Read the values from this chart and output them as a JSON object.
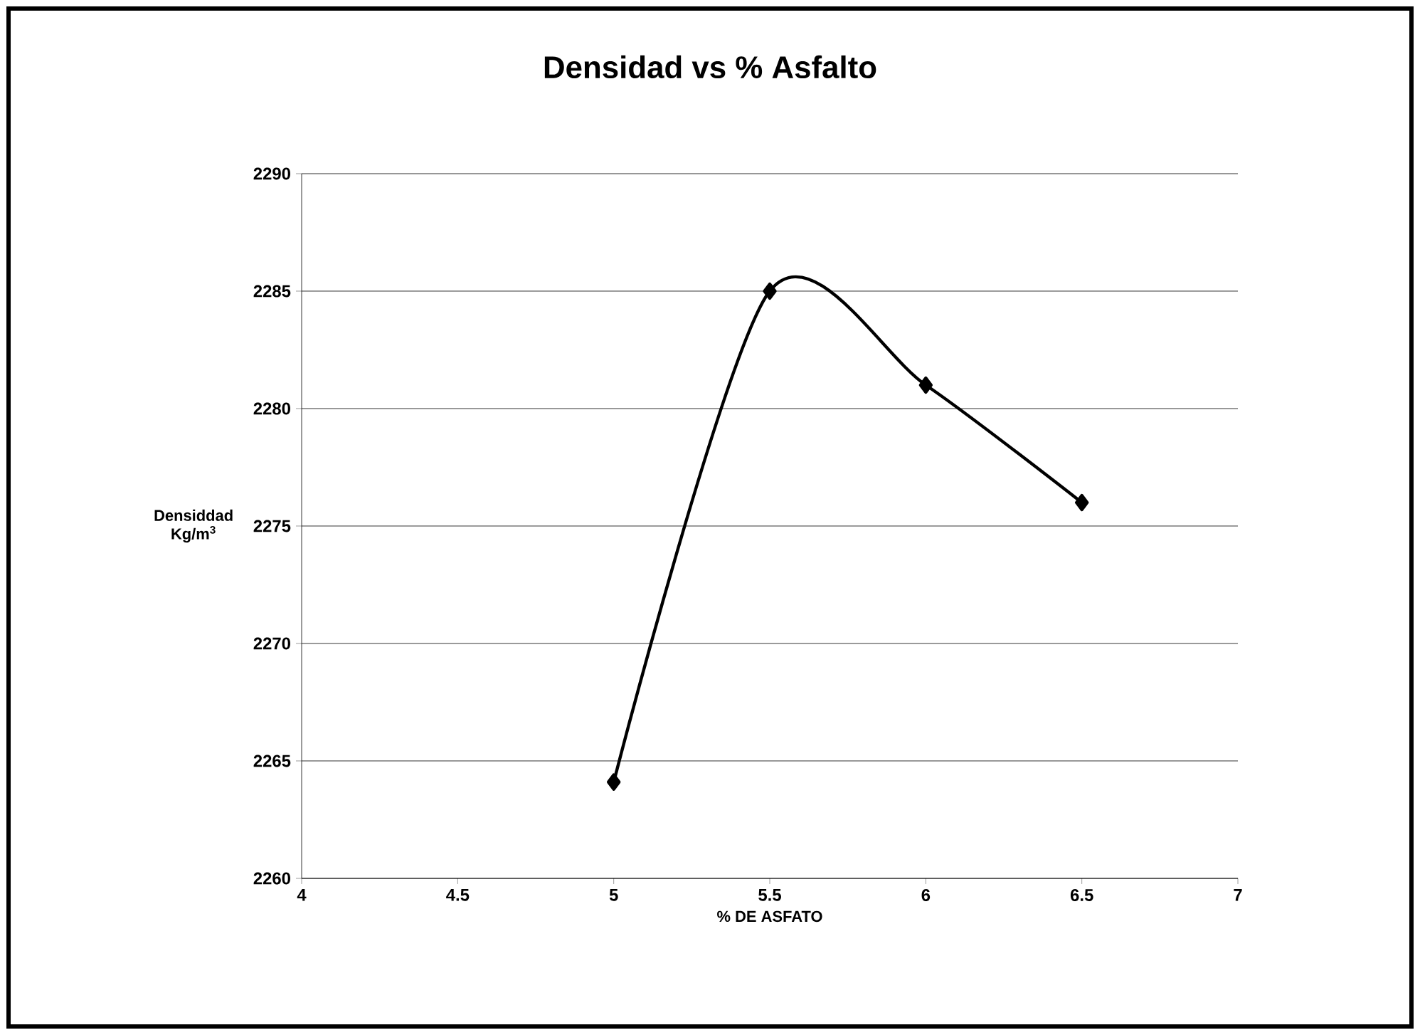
{
  "chart_data": {
    "type": "line",
    "title": "Densidad vs % Asfalto",
    "xlabel": "% DE ASFATO",
    "ylabel": "Densiddad Kg/m$^{3}$",
    "x": [
      5,
      5.5,
      6,
      6.5
    ],
    "series": [
      {
        "color": "#000000",
        "values": [
          2264.1,
          2285,
          2281,
          2276
        ]
      }
    ],
    "xlim": [
      4,
      7
    ],
    "xticks": [
      4,
      4.5,
      5,
      5.5,
      6,
      6.5,
      7
    ],
    "ylim": [
      2260,
      2290
    ],
    "yticks": [
      2260,
      2265,
      2270,
      2275,
      2280,
      2285,
      2290
    ],
    "grid": "y",
    "marker": "diamond",
    "line_style": "solid"
  }
}
